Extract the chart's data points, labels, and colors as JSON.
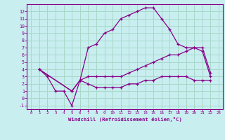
{
  "xlabel": "Windchill (Refroidissement éolien,°C)",
  "background_color": "#c8eef0",
  "grid_color": "#a8d8c8",
  "line_color": "#880088",
  "xlim": [
    -0.5,
    23.5
  ],
  "ylim": [
    -1.5,
    13.0
  ],
  "xticks": [
    0,
    1,
    2,
    3,
    4,
    5,
    6,
    7,
    8,
    9,
    10,
    11,
    12,
    13,
    14,
    15,
    16,
    17,
    18,
    19,
    20,
    21,
    22,
    23
  ],
  "yticks": [
    -1,
    0,
    1,
    2,
    3,
    4,
    5,
    6,
    7,
    8,
    9,
    10,
    11,
    12
  ],
  "line1_x": [
    1,
    2,
    3,
    4,
    5,
    6,
    7,
    8,
    9,
    10,
    11,
    12,
    13,
    14,
    15,
    16,
    17,
    18,
    19,
    20,
    21,
    22
  ],
  "line1_y": [
    4,
    3,
    1,
    1,
    -1,
    2.5,
    7,
    7.5,
    9,
    9.5,
    11,
    11.5,
    12,
    12.5,
    12.5,
    11,
    9.5,
    7.5,
    7,
    7,
    6.5,
    3
  ],
  "line2_x": [
    1,
    5,
    6,
    7,
    8,
    9,
    10,
    11,
    12,
    13,
    14,
    15,
    16,
    17,
    18,
    19,
    20,
    21,
    22
  ],
  "line2_y": [
    4,
    1,
    2.5,
    3,
    3,
    3,
    3,
    3,
    3.5,
    4,
    4.5,
    5,
    5.5,
    6,
    6,
    6.5,
    7,
    7,
    3.5
  ],
  "line3_x": [
    1,
    5,
    6,
    7,
    8,
    9,
    10,
    11,
    12,
    13,
    14,
    15,
    16,
    17,
    18,
    19,
    20,
    21,
    22
  ],
  "line3_y": [
    4,
    1,
    2.5,
    2,
    1.5,
    1.5,
    1.5,
    1.5,
    2,
    2,
    2.5,
    2.5,
    3,
    3,
    3,
    3,
    2.5,
    2.5,
    2.5
  ]
}
